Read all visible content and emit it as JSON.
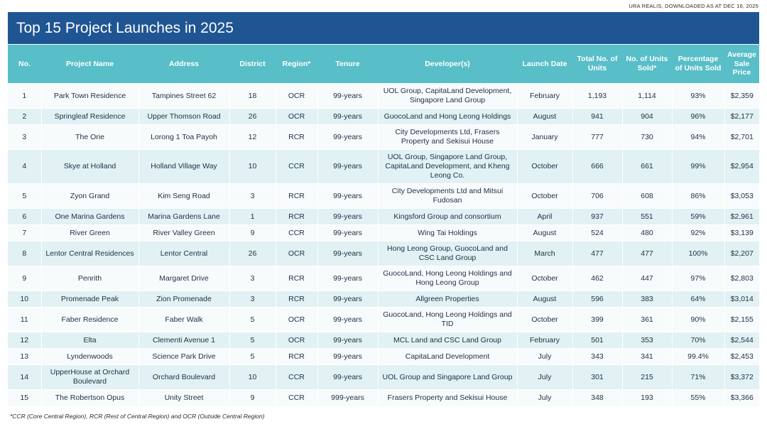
{
  "source": "URA REALIS, DOWNLOADED AS AT DEC 16, 2025",
  "title": "Top 15 Project Launches in 2025",
  "columns": [
    "No.",
    "Project Name",
    "Address",
    "District",
    "Region*",
    "Tenure",
    "Developer(s)",
    "Launch Date",
    "Total No. of Units",
    "No. of Units Sold*",
    "Percentage of Units Sold",
    "Average Sale Price"
  ],
  "rows": [
    {
      "no": "1",
      "name": "Park Town Residence",
      "address": "Tampines Street 62",
      "district": "18",
      "region": "OCR",
      "tenure": "99-years",
      "developer": "UOL Group, CapitaLand Development, Singapore Land Group",
      "launch": "February",
      "total": "1,193",
      "sold": "1,114",
      "pct": "93%",
      "price": "$2,359"
    },
    {
      "no": "2",
      "name": "Springleaf Residence",
      "address": "Upper Thomson Road",
      "district": "26",
      "region": "OCR",
      "tenure": "99-years",
      "developer": "GuocoLand and Hong Leong Holdings",
      "launch": "August",
      "total": "941",
      "sold": "904",
      "pct": "96%",
      "price": "$2,177"
    },
    {
      "no": "3",
      "name": "The Orie",
      "address": "Lorong 1 Toa Payoh",
      "district": "12",
      "region": "RCR",
      "tenure": "99-years",
      "developer": "City Developments Ltd, Frasers Property and Sekisui House",
      "launch": "January",
      "total": "777",
      "sold": "730",
      "pct": "94%",
      "price": "$2,701"
    },
    {
      "no": "4",
      "name": "Skye at Holland",
      "address": "Holland Village Way",
      "district": "10",
      "region": "CCR",
      "tenure": "99-years",
      "developer": "UOL Group, Singapore Land Group, CapitaLand Development, and Kheng Leong Co.",
      "launch": "October",
      "total": "666",
      "sold": "661",
      "pct": "99%",
      "price": "$2,954"
    },
    {
      "no": "5",
      "name": "Zyon Grand",
      "address": "Kim Seng Road",
      "district": "3",
      "region": "RCR",
      "tenure": "99-years",
      "developer": "City Developments Ltd and Mitsui Fudosan",
      "launch": "October",
      "total": "706",
      "sold": "608",
      "pct": "86%",
      "price": "$3,053"
    },
    {
      "no": "6",
      "name": "One Marina Gardens",
      "address": "Marina Gardens Lane",
      "district": "1",
      "region": "RCR",
      "tenure": "99-years",
      "developer": "Kingsford Group and consortium",
      "launch": "April",
      "total": "937",
      "sold": "551",
      "pct": "59%",
      "price": "$2,961"
    },
    {
      "no": "7",
      "name": "River Green",
      "address": "River Valley Green",
      "district": "9",
      "region": "CCR",
      "tenure": "99-years",
      "developer": "Wing Tai Holdings",
      "launch": "August",
      "total": "524",
      "sold": "480",
      "pct": "92%",
      "price": "$3,139"
    },
    {
      "no": "8",
      "name": "Lentor Central Residences",
      "address": "Lentor Central",
      "district": "26",
      "region": "OCR",
      "tenure": "99-years",
      "developer": "Hong Leong Group, GuocoLand and CSC Land Group",
      "launch": "March",
      "total": "477",
      "sold": "477",
      "pct": "100%",
      "price": "$2,207"
    },
    {
      "no": "9",
      "name": "Penrith",
      "address": "Margaret Drive",
      "district": "3",
      "region": "RCR",
      "tenure": "99-years",
      "developer": "GuocoLand, Hong Leong Holdings and Hong Leong Group",
      "launch": "October",
      "total": "462",
      "sold": "447",
      "pct": "97%",
      "price": "$2,803"
    },
    {
      "no": "10",
      "name": "Promenade Peak",
      "address": "Zion Promenade",
      "district": "3",
      "region": "RCR",
      "tenure": "99-years",
      "developer": "Allgreen Properties",
      "launch": "August",
      "total": "596",
      "sold": "383",
      "pct": "64%",
      "price": "$3,014"
    },
    {
      "no": "11",
      "name": "Faber Residence",
      "address": "Faber Walk",
      "district": "5",
      "region": "OCR",
      "tenure": "99-years",
      "developer": "GuocoLand, Hong Leong Holdings and TID",
      "launch": "October",
      "total": "399",
      "sold": "361",
      "pct": "90%",
      "price": "$2,155"
    },
    {
      "no": "12",
      "name": "Elta",
      "address": "Clementi Avenue 1",
      "district": "5",
      "region": "OCR",
      "tenure": "99-years",
      "developer": "MCL Land and CSC Land Group",
      "launch": "February",
      "total": "501",
      "sold": "353",
      "pct": "70%",
      "price": "$2,544"
    },
    {
      "no": "13",
      "name": "Lyndenwoods",
      "address": "Science Park Drive",
      "district": "5",
      "region": "RCR",
      "tenure": "99-years",
      "developer": "CapitaLand Development",
      "launch": "July",
      "total": "343",
      "sold": "341",
      "pct": "99.4%",
      "price": "$2,453"
    },
    {
      "no": "14",
      "name": "UpperHouse at Orchard Boulevard",
      "address": "Orchard Boulevard",
      "district": "10",
      "region": "CCR",
      "tenure": "99-years",
      "developer": "UOL Group and Singapore Land Group",
      "launch": "July",
      "total": "301",
      "sold": "215",
      "pct": "71%",
      "price": "$3,372"
    },
    {
      "no": "15",
      "name": "The Robertson Opus",
      "address": "Unity Street",
      "district": "9",
      "region": "CCR",
      "tenure": "999-years",
      "developer": "Frasers Property and Sekisui House",
      "launch": "July",
      "total": "348",
      "sold": "193",
      "pct": "55%",
      "price": "$3,366"
    }
  ],
  "footnote": "*CCR (Core Central Region), RCR (Rest of Central Region) and OCR (Outside Central Region)"
}
